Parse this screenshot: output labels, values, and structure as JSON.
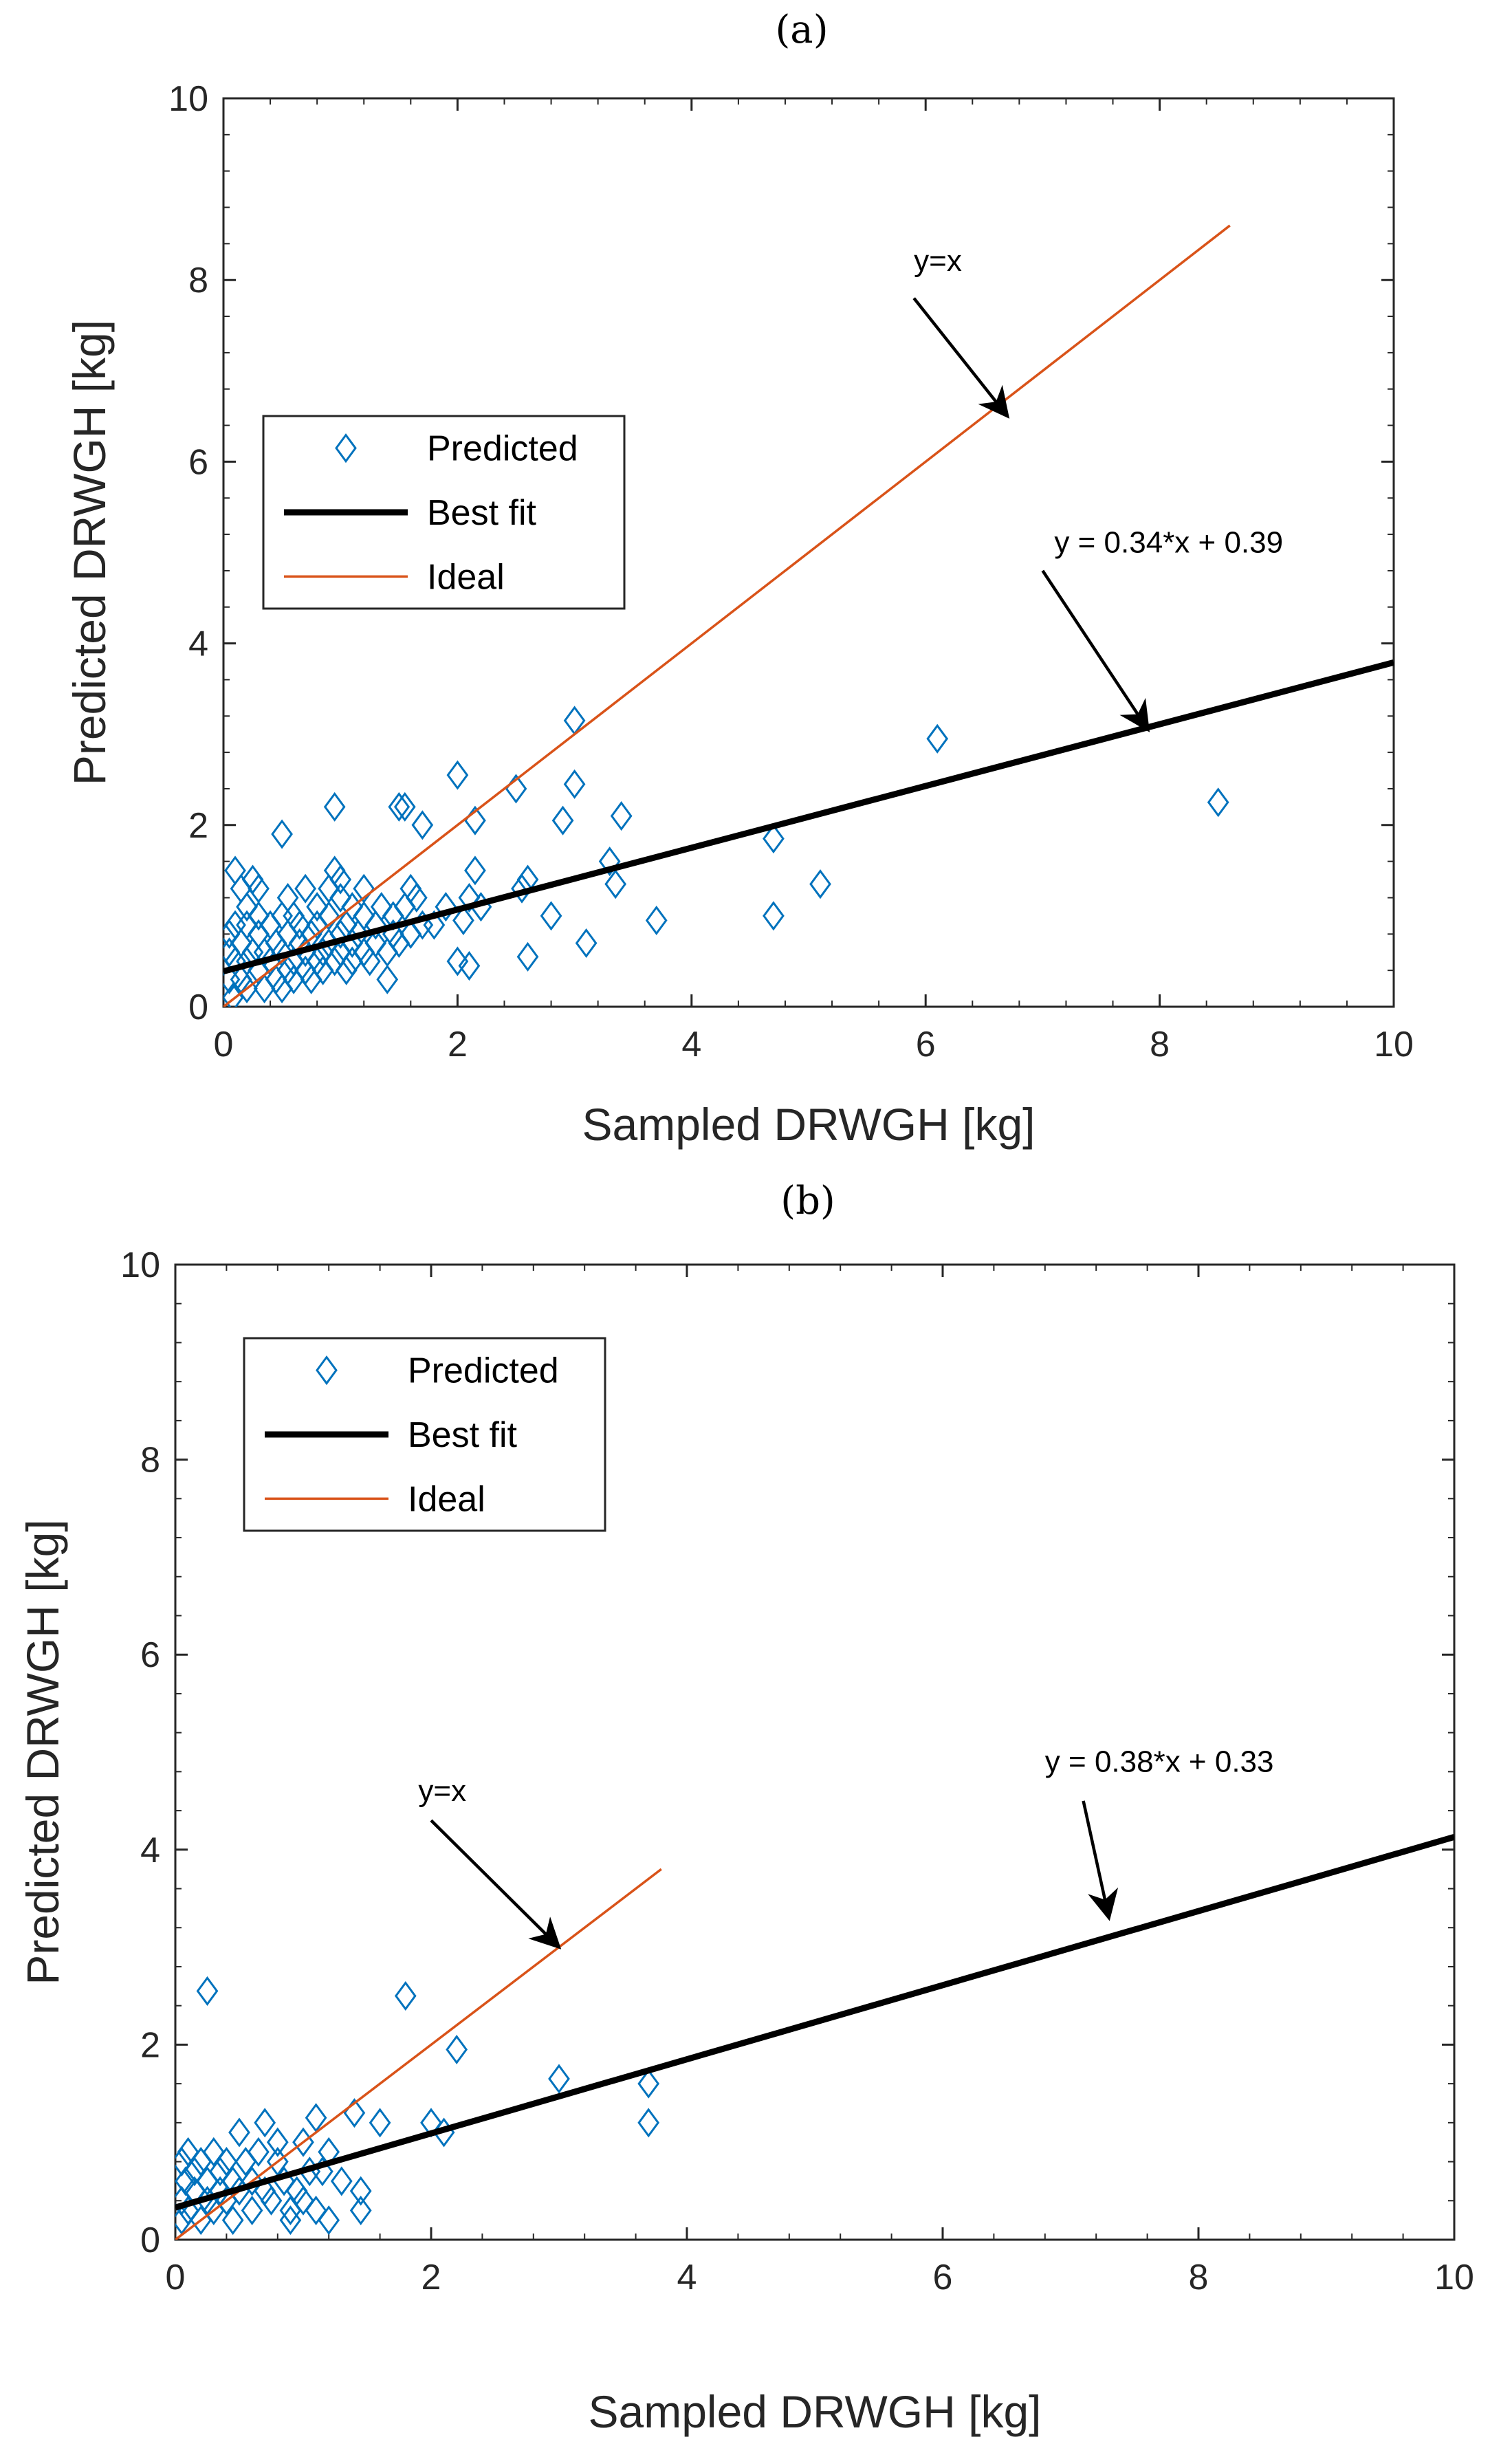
{
  "chart_data": [
    {
      "type": "scatter",
      "panel_label": "(a)",
      "xlabel": "Sampled DRWGH [kg]",
      "ylabel": "Predicted DRWGH [kg]",
      "xlim": [
        0,
        10
      ],
      "ylim": [
        0,
        10
      ],
      "xticks": [
        "0",
        "2",
        "4",
        "6",
        "8",
        "10"
      ],
      "yticks": [
        "0",
        "2",
        "4",
        "6",
        "8",
        "10"
      ],
      "legend": [
        "Predicted",
        "Best fit",
        "Ideal"
      ],
      "legend_position": "upper-left",
      "colors": {
        "predicted": "#0072BD",
        "best_fit": "#000000",
        "ideal": "#D95319"
      },
      "fit": {
        "slope": 0.34,
        "intercept": 0.39,
        "x_range": [
          0,
          10
        ]
      },
      "ideal": {
        "x_range": [
          0,
          8.6
        ]
      },
      "annotations": [
        {
          "text": "y=x",
          "text_at": [
            5.9,
            8.1
          ],
          "arrow_from": [
            5.9,
            7.8
          ],
          "arrow_to": [
            6.7,
            6.5
          ]
        },
        {
          "text": "y = 0.34*x + 0.39",
          "text_at": [
            7.1,
            5.0
          ],
          "arrow_from": [
            7.0,
            4.8
          ],
          "arrow_to": [
            7.9,
            3.05
          ]
        }
      ],
      "points": [
        [
          0.1,
          1.5
        ],
        [
          0.15,
          1.3
        ],
        [
          0.2,
          1.1
        ],
        [
          0.25,
          1.4
        ],
        [
          0.3,
          1.3
        ],
        [
          0.5,
          1.9
        ],
        [
          0.55,
          1.2
        ],
        [
          0.6,
          1.0
        ],
        [
          0.7,
          1.3
        ],
        [
          0.8,
          1.1
        ],
        [
          0.9,
          1.3
        ],
        [
          0.95,
          1.5
        ],
        [
          1.0,
          1.4
        ],
        [
          1.0,
          1.2
        ],
        [
          1.1,
          1.1
        ],
        [
          1.2,
          1.3
        ],
        [
          0.95,
          2.2
        ],
        [
          0.05,
          0.6
        ],
        [
          0.05,
          0.3
        ],
        [
          0.05,
          0.8
        ],
        [
          0.08,
          0.1
        ],
        [
          0.1,
          0.5
        ],
        [
          0.1,
          0.9
        ],
        [
          0.15,
          0.3
        ],
        [
          0.15,
          0.7
        ],
        [
          0.2,
          0.5
        ],
        [
          0.2,
          0.9
        ],
        [
          0.2,
          0.2
        ],
        [
          0.25,
          0.6
        ],
        [
          0.3,
          0.4
        ],
        [
          0.3,
          0.8
        ],
        [
          0.3,
          1.0
        ],
        [
          0.35,
          0.2
        ],
        [
          0.35,
          0.6
        ],
        [
          0.4,
          0.5
        ],
        [
          0.4,
          0.9
        ],
        [
          0.45,
          0.3
        ],
        [
          0.45,
          0.7
        ],
        [
          0.5,
          0.6
        ],
        [
          0.5,
          0.2
        ],
        [
          0.5,
          1.0
        ],
        [
          0.55,
          0.4
        ],
        [
          0.55,
          0.8
        ],
        [
          0.6,
          0.5
        ],
        [
          0.6,
          0.3
        ],
        [
          0.65,
          0.7
        ],
        [
          0.65,
          0.9
        ],
        [
          0.7,
          0.4
        ],
        [
          0.7,
          0.6
        ],
        [
          0.75,
          0.8
        ],
        [
          0.75,
          0.3
        ],
        [
          0.8,
          0.5
        ],
        [
          0.8,
          0.9
        ],
        [
          0.85,
          0.6
        ],
        [
          0.85,
          0.4
        ],
        [
          0.9,
          0.7
        ],
        [
          0.9,
          1.0
        ],
        [
          0.95,
          0.5
        ],
        [
          1.0,
          0.6
        ],
        [
          1.0,
          0.8
        ],
        [
          1.05,
          0.4
        ],
        [
          1.05,
          0.9
        ],
        [
          1.1,
          0.7
        ],
        [
          1.1,
          0.5
        ],
        [
          1.15,
          0.8
        ],
        [
          1.2,
          0.6
        ],
        [
          1.2,
          1.0
        ],
        [
          1.25,
          0.5
        ],
        [
          1.3,
          0.7
        ],
        [
          1.3,
          0.9
        ],
        [
          1.35,
          1.1
        ],
        [
          1.4,
          0.6
        ],
        [
          1.4,
          0.3
        ],
        [
          1.45,
          0.8
        ],
        [
          1.45,
          1.0
        ],
        [
          1.5,
          0.7
        ],
        [
          1.5,
          2.2
        ],
        [
          1.55,
          2.2
        ],
        [
          1.55,
          1.1
        ],
        [
          1.6,
          0.8
        ],
        [
          1.6,
          1.3
        ],
        [
          1.65,
          1.2
        ],
        [
          1.7,
          0.9
        ],
        [
          1.7,
          2.0
        ],
        [
          1.8,
          0.9
        ],
        [
          1.9,
          1.1
        ],
        [
          2.0,
          2.55
        ],
        [
          2.0,
          0.5
        ],
        [
          2.05,
          0.95
        ],
        [
          2.1,
          1.2
        ],
        [
          2.1,
          0.45
        ],
        [
          2.15,
          2.05
        ],
        [
          2.15,
          1.5
        ],
        [
          2.2,
          1.1
        ],
        [
          2.5,
          2.4
        ],
        [
          2.55,
          1.3
        ],
        [
          2.6,
          1.4
        ],
        [
          2.6,
          0.55
        ],
        [
          2.8,
          1.0
        ],
        [
          2.9,
          2.05
        ],
        [
          3.0,
          3.15
        ],
        [
          3.0,
          2.45
        ],
        [
          3.1,
          0.7
        ],
        [
          3.3,
          1.6
        ],
        [
          3.35,
          1.35
        ],
        [
          3.4,
          2.1
        ],
        [
          3.7,
          0.95
        ],
        [
          4.7,
          1.85
        ],
        [
          4.7,
          1.0
        ],
        [
          5.1,
          1.35
        ],
        [
          6.1,
          2.95
        ],
        [
          8.5,
          2.25
        ]
      ]
    },
    {
      "type": "scatter",
      "panel_label": "(b)",
      "xlabel": "Sampled DRWGH [kg]",
      "ylabel": "Predicted DRWGH [kg]",
      "xlim": [
        0,
        10
      ],
      "ylim": [
        0,
        10
      ],
      "xticks": [
        "0",
        "2",
        "4",
        "6",
        "8",
        "10"
      ],
      "yticks": [
        "0",
        "2",
        "4",
        "6",
        "8",
        "10"
      ],
      "legend": [
        "Predicted",
        "Best fit",
        "Ideal"
      ],
      "legend_position": "upper-left",
      "colors": {
        "predicted": "#0072BD",
        "best_fit": "#000000",
        "ideal": "#D95319"
      },
      "fit": {
        "slope": 0.38,
        "intercept": 0.33,
        "x_range": [
          0,
          10
        ]
      },
      "ideal": {
        "x_range": [
          0,
          3.8
        ]
      },
      "annotations": [
        {
          "text": "y=x",
          "text_at": [
            1.9,
            4.5
          ],
          "arrow_from": [
            2.0,
            4.3
          ],
          "arrow_to": [
            3.0,
            3.0
          ]
        },
        {
          "text": "y = 0.38*x + 0.33",
          "text_at": [
            6.8,
            4.8
          ],
          "arrow_from": [
            7.1,
            4.5
          ],
          "arrow_to": [
            7.3,
            3.3
          ]
        }
      ],
      "points": [
        [
          0.05,
          0.8
        ],
        [
          0.05,
          0.4
        ],
        [
          0.05,
          0.2
        ],
        [
          0.08,
          0.6
        ],
        [
          0.1,
          0.9
        ],
        [
          0.1,
          0.3
        ],
        [
          0.15,
          0.5
        ],
        [
          0.15,
          0.7
        ],
        [
          0.2,
          0.2
        ],
        [
          0.2,
          0.8
        ],
        [
          0.25,
          0.4
        ],
        [
          0.25,
          0.6
        ],
        [
          0.3,
          0.9
        ],
        [
          0.3,
          0.3
        ],
        [
          0.35,
          0.5
        ],
        [
          0.35,
          0.7
        ],
        [
          0.4,
          0.4
        ],
        [
          0.4,
          0.8
        ],
        [
          0.45,
          0.6
        ],
        [
          0.45,
          0.2
        ],
        [
          0.5,
          1.1
        ],
        [
          0.5,
          0.5
        ],
        [
          0.55,
          0.8
        ],
        [
          0.6,
          0.3
        ],
        [
          0.6,
          0.6
        ],
        [
          0.65,
          0.9
        ],
        [
          0.7,
          1.2
        ],
        [
          0.7,
          0.5
        ],
        [
          0.75,
          0.4
        ],
        [
          0.8,
          0.8
        ],
        [
          0.8,
          1.0
        ],
        [
          0.85,
          0.6
        ],
        [
          0.9,
          0.3
        ],
        [
          0.9,
          0.2
        ],
        [
          0.95,
          0.5
        ],
        [
          1.0,
          1.0
        ],
        [
          1.0,
          0.4
        ],
        [
          1.05,
          0.7
        ],
        [
          1.1,
          1.25
        ],
        [
          1.1,
          0.3
        ],
        [
          1.15,
          0.7
        ],
        [
          1.2,
          0.9
        ],
        [
          1.2,
          0.2
        ],
        [
          1.3,
          0.6
        ],
        [
          1.4,
          1.3
        ],
        [
          1.45,
          0.5
        ],
        [
          1.45,
          0.3
        ],
        [
          1.6,
          1.2
        ],
        [
          1.8,
          2.5
        ],
        [
          2.0,
          1.2
        ],
        [
          2.1,
          1.1
        ],
        [
          2.2,
          1.95
        ],
        [
          3.0,
          1.65
        ],
        [
          3.7,
          1.6
        ],
        [
          3.7,
          1.2
        ],
        [
          0.25,
          2.55
        ]
      ]
    }
  ]
}
